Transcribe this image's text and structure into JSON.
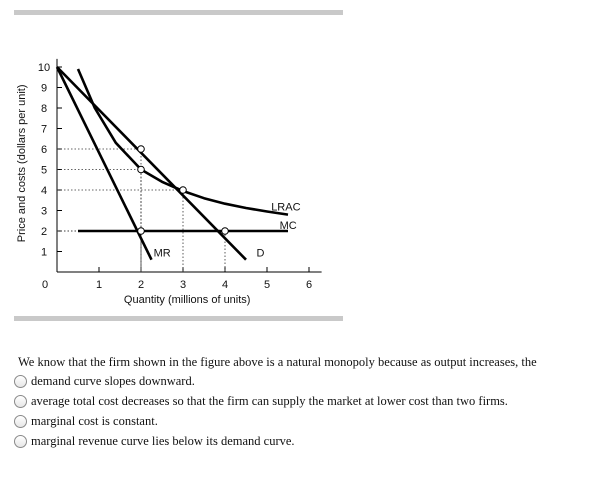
{
  "chart_data": {
    "type": "line",
    "ylabel": "Price and costs (dollars per unit)",
    "xlabel": "Quantity (millions of units)",
    "xlim": [
      0,
      6.3
    ],
    "ylim": [
      0,
      10.3
    ],
    "x_ticks": [
      0,
      1,
      2,
      3,
      4,
      5,
      6
    ],
    "y_ticks": [
      1,
      2,
      3,
      4,
      5,
      6,
      7,
      8,
      9,
      10
    ],
    "series": [
      {
        "name": "D",
        "points": [
          [
            0,
            10
          ],
          [
            4.5,
            0.6
          ]
        ]
      },
      {
        "name": "MR",
        "points": [
          [
            0,
            10
          ],
          [
            2.25,
            0.6
          ]
        ]
      },
      {
        "name": "LRAC",
        "points": [
          [
            0.5,
            9.9
          ],
          [
            0.9,
            8
          ],
          [
            1.4,
            6.3
          ],
          [
            2,
            5
          ],
          [
            2.5,
            4.4
          ],
          [
            3,
            3.95
          ],
          [
            3.5,
            3.6
          ],
          [
            4,
            3.33
          ],
          [
            4.5,
            3.12
          ],
          [
            5,
            2.95
          ],
          [
            5.5,
            2.8
          ]
        ]
      },
      {
        "name": "MC",
        "points": [
          [
            0.5,
            2
          ],
          [
            5.5,
            2
          ]
        ]
      }
    ],
    "points_marked": [
      {
        "x": 2,
        "y": 6
      },
      {
        "x": 2,
        "y": 5
      },
      {
        "x": 3,
        "y": 4
      },
      {
        "x": 2,
        "y": 2
      },
      {
        "x": 4,
        "y": 2
      }
    ],
    "labels": [
      {
        "text": "LRAC",
        "x": 5.1,
        "y": 3.0
      },
      {
        "text": "MC",
        "x": 5.3,
        "y": 2.1
      },
      {
        "text": "MR",
        "x": 2.3,
        "y": 0.75
      },
      {
        "text": "D",
        "x": 4.75,
        "y": 0.75
      }
    ]
  },
  "question": {
    "text": "We know that the firm shown in the figure above is a natural monopoly because as output increases, the",
    "options": [
      {
        "label": "demand curve slopes downward."
      },
      {
        "label": "average total cost decreases so that the firm can supply the market at lower cost than two firms."
      },
      {
        "label": "marginal cost is constant."
      },
      {
        "label": "marginal revenue curve lies below its demand curve."
      }
    ]
  }
}
